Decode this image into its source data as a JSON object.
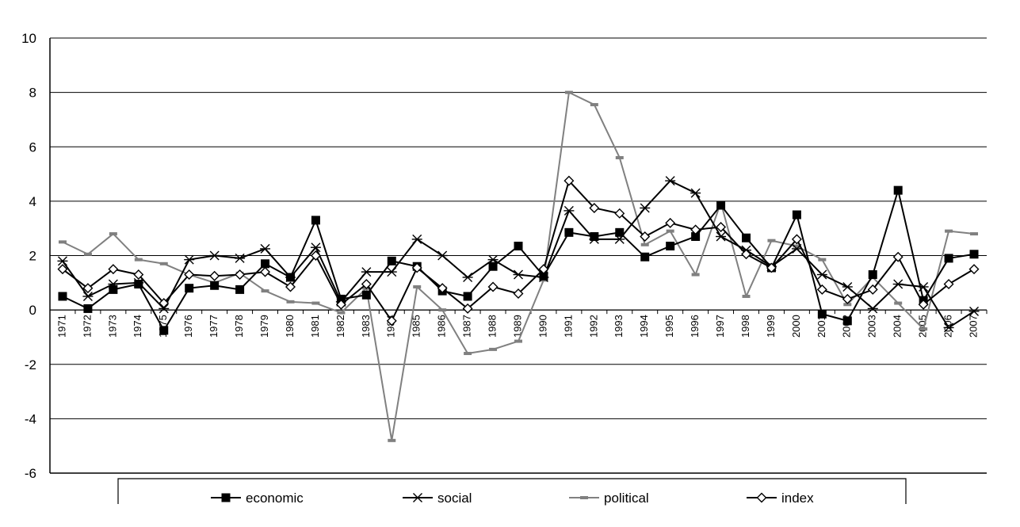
{
  "chart_data": {
    "type": "line",
    "title": "",
    "xlabel": "",
    "ylabel": "",
    "ylim": [
      -6,
      10
    ],
    "yticks": [
      -6,
      -4,
      -2,
      0,
      2,
      4,
      6,
      8,
      10
    ],
    "grid": "horizontal",
    "legend_position": "bottom",
    "x": [
      "1971",
      "1972",
      "1973",
      "1974",
      "1975",
      "1976",
      "1977",
      "1978",
      "1979",
      "1980",
      "1981",
      "1982",
      "1983",
      "1984",
      "1985",
      "1986",
      "1987",
      "1988",
      "1989",
      "1990",
      "1991",
      "1992",
      "1993",
      "1994",
      "1995",
      "1996",
      "1997",
      "1998",
      "1999",
      "2000",
      "2001",
      "2002",
      "2003",
      "2004",
      "2005",
      "2006",
      "2007"
    ],
    "series": [
      {
        "name": "economic",
        "color": "#000000",
        "marker": "filled-square",
        "values": [
          0.5,
          0.05,
          0.75,
          0.95,
          -0.75,
          0.8,
          0.9,
          0.75,
          1.7,
          1.2,
          3.3,
          0.4,
          0.55,
          1.8,
          1.6,
          0.7,
          0.5,
          1.6,
          2.35,
          1.25,
          2.85,
          2.7,
          2.85,
          1.95,
          2.35,
          2.7,
          3.85,
          2.65,
          1.55,
          3.5,
          -0.15,
          -0.4,
          1.3,
          4.4,
          0.35,
          1.9,
          2.05
        ]
      },
      {
        "name": "social",
        "color": "#000000",
        "marker": "star",
        "values": [
          1.8,
          0.5,
          0.95,
          1.0,
          0.05,
          1.85,
          2.0,
          1.9,
          2.25,
          1.2,
          2.3,
          0.3,
          1.4,
          1.4,
          2.6,
          2.0,
          1.2,
          1.85,
          1.3,
          1.2,
          3.65,
          2.6,
          2.6,
          3.75,
          4.75,
          4.3,
          2.7,
          2.2,
          1.6,
          2.25,
          1.3,
          0.85,
          0.05,
          0.95,
          0.85,
          -0.65,
          -0.05
        ]
      },
      {
        "name": "political",
        "color": "#808080",
        "marker": "dash",
        "values": [
          2.5,
          2.05,
          2.8,
          1.85,
          1.7,
          1.3,
          1.0,
          1.35,
          0.7,
          0.3,
          0.25,
          -0.1,
          0.8,
          -4.8,
          0.85,
          0.0,
          -1.6,
          -1.45,
          -1.15,
          1.1,
          8.0,
          7.55,
          5.6,
          2.4,
          2.9,
          1.3,
          3.95,
          0.5,
          2.55,
          2.35,
          1.85,
          0.2,
          1.2,
          0.25,
          -0.7,
          2.9,
          2.8
        ]
      },
      {
        "name": "index",
        "color": "#000000",
        "marker": "open-diamond",
        "values": [
          1.5,
          0.8,
          1.5,
          1.3,
          0.25,
          1.3,
          1.25,
          1.3,
          1.4,
          0.85,
          2.0,
          0.2,
          0.95,
          -0.4,
          1.55,
          0.8,
          0.05,
          0.85,
          0.6,
          1.5,
          4.75,
          3.75,
          3.55,
          2.7,
          3.2,
          2.95,
          3.05,
          2.05,
          1.55,
          2.6,
          0.75,
          0.4,
          0.75,
          1.95,
          0.2,
          0.95,
          1.5
        ]
      }
    ]
  }
}
